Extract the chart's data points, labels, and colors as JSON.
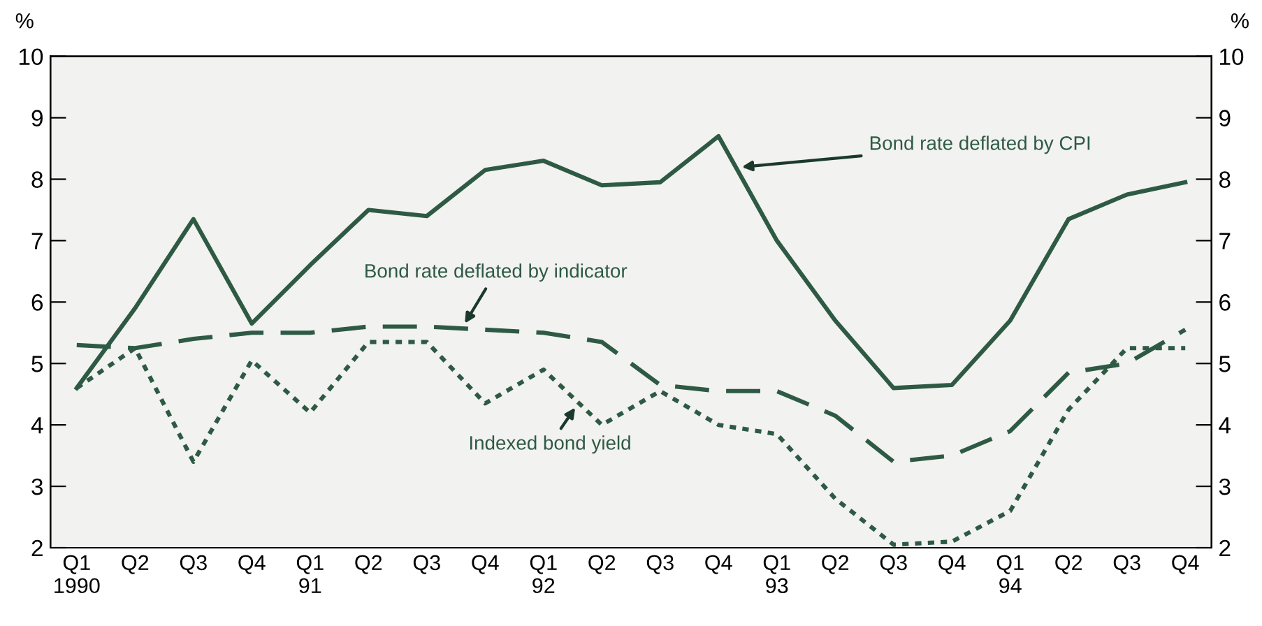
{
  "chart_data": {
    "type": "line",
    "categories": [
      "Q1\n1990",
      "Q2",
      "Q3",
      "Q4",
      "Q1\n91",
      "Q2",
      "Q3",
      "Q4",
      "Q1\n92",
      "Q2",
      "Q3",
      "Q4",
      "Q1\n93",
      "Q2",
      "Q3",
      "Q4",
      "Q1\n94",
      "Q2",
      "Q3",
      "Q4"
    ],
    "series": [
      {
        "name": "Bond rate deflated by CPI",
        "color": "#2e5a44",
        "line_style": "solid",
        "values": [
          4.6,
          5.9,
          7.35,
          5.65,
          6.6,
          7.5,
          7.4,
          8.15,
          8.3,
          7.9,
          7.95,
          8.7,
          7.0,
          5.7,
          4.6,
          4.65,
          5.7,
          7.35,
          7.75,
          7.95
        ]
      },
      {
        "name": "Bond rate deflated by indicator",
        "color": "#2e5a44",
        "line_style": "dashed",
        "values": [
          5.3,
          5.25,
          5.4,
          5.5,
          5.5,
          5.6,
          5.6,
          5.55,
          5.5,
          5.35,
          4.65,
          4.55,
          4.55,
          4.15,
          3.4,
          3.5,
          3.9,
          4.85,
          5.0,
          5.55
        ]
      },
      {
        "name": "Indexed bond yield",
        "color": "#2e5a44",
        "line_style": "dotted",
        "values": [
          4.6,
          5.25,
          3.4,
          5.05,
          4.2,
          5.35,
          5.35,
          4.35,
          4.9,
          4.0,
          4.55,
          4.0,
          3.85,
          2.8,
          2.05,
          2.1,
          2.6,
          4.25,
          5.25,
          5.25
        ]
      }
    ],
    "ylabel": "%",
    "y2label": "%",
    "ylim": [
      2,
      10
    ],
    "yticks": [
      2,
      3,
      4,
      5,
      6,
      7,
      8,
      9,
      10
    ],
    "y2lim": [
      2,
      10
    ],
    "y2ticks": [
      2,
      3,
      4,
      5,
      6,
      7,
      8,
      9,
      10
    ],
    "grid": false,
    "legend": false,
    "marker": "none"
  }
}
